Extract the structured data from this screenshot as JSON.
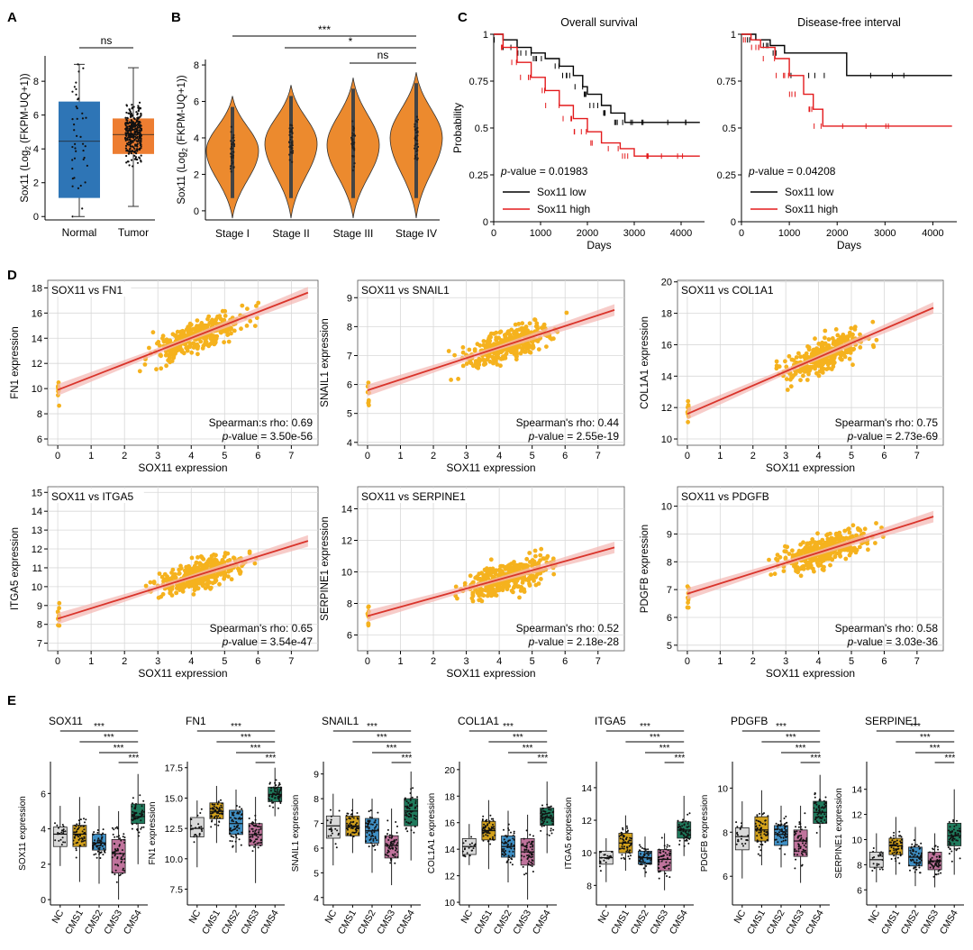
{
  "colors": {
    "normal_box": "#2e75b6",
    "tumor_box": "#ed7d31",
    "violin": "#ec8a2e",
    "km_low": "#000000",
    "km_high": "#e31a1c",
    "scatter_point": "#f5b21e",
    "fit_line": "#d9342b",
    "fit_band": "#f4b6b2",
    "cms": [
      "#d9d9d9",
      "#d4a21c",
      "#3f8fc4",
      "#c0739c",
      "#1f7a5c"
    ]
  },
  "panels": {
    "A": {
      "label": "A",
      "ylabel_main": "Sox11 (Log",
      "ylabel_sub": "2",
      "ylabel_tail": " (FKPM-UQ+1))",
      "sig": "ns"
    },
    "B": {
      "label": "B",
      "ylabel_main": "Sox11 (Log",
      "ylabel_sub": "2",
      "ylabel_tail": " (FKPM-UQ+1))",
      "sig": [
        "***",
        "*",
        "ns"
      ]
    },
    "C": {
      "label": "C",
      "left_title": "Overall survival",
      "right_title": "Disease-free interval",
      "ylabel": "Probability",
      "xlabel": "Days",
      "p_label": "p",
      "left_p": "-value = 0.01983",
      "right_p": "-value = 0.04208",
      "legend_low": "Sox11 low",
      "legend_high": "Sox11 high"
    },
    "D": {
      "label": "D",
      "xlabel": "SOX11 expression",
      "p_label": "p"
    },
    "E": {
      "label": "E",
      "sig": [
        "***",
        "***",
        "***",
        "***"
      ]
    }
  },
  "chart_data": [
    {
      "id": "A",
      "type": "box",
      "title": "",
      "xlabel": "",
      "ylabel": "Sox11 (Log2 (FKPM-UQ+1))",
      "categories": [
        "Normal",
        "Tumor"
      ],
      "ylim": [
        -0.2,
        9.5
      ],
      "yticks": [
        0,
        2,
        4,
        6,
        8
      ],
      "boxes": [
        {
          "name": "Normal",
          "min": 0.0,
          "q1": 1.1,
          "median": 4.45,
          "q3": 6.8,
          "max": 9.0
        },
        {
          "name": "Tumor",
          "min": 0.6,
          "q1": 3.7,
          "median": 4.85,
          "q3": 5.8,
          "max": 8.8
        }
      ],
      "significance": "ns"
    },
    {
      "id": "B",
      "type": "violin",
      "title": "",
      "ylabel": "Sox11 (Log2 (FKPM-UQ+1))",
      "categories": [
        "Stage I",
        "Stage II",
        "Stage III",
        "Stage IV"
      ],
      "ylim": [
        -0.5,
        8.3
      ],
      "yticks": [
        0,
        2,
        4,
        6,
        8
      ],
      "ranges": [
        {
          "name": "Stage I",
          "min": 0.0,
          "max": 6.3,
          "mode": 3.3
        },
        {
          "name": "Stage II",
          "min": 0.0,
          "max": 6.9,
          "mode": 3.7
        },
        {
          "name": "Stage III",
          "min": 0.0,
          "max": 7.3,
          "mode": 3.6
        },
        {
          "name": "Stage IV",
          "min": 0.0,
          "max": 7.6,
          "mode": 4.0
        }
      ],
      "comparisons": [
        {
          "from": "Stage I",
          "to": "Stage IV",
          "label": "***"
        },
        {
          "from": "Stage II",
          "to": "Stage IV",
          "label": "*"
        },
        {
          "from": "Stage III",
          "to": "Stage IV",
          "label": "ns"
        }
      ]
    },
    {
      "id": "C1",
      "type": "line",
      "title": "Overall survival",
      "xlabel": "Days",
      "ylabel": "Probability",
      "xlim": [
        0,
        4500
      ],
      "ylim": [
        0,
        1
      ],
      "xticks": [
        0,
        1000,
        2000,
        3000,
        4000
      ],
      "yticks": [
        0,
        0.25,
        0.5,
        0.75,
        1
      ],
      "series": [
        {
          "name": "Sox11 low",
          "x": [
            0,
            200,
            500,
            800,
            1100,
            1400,
            1700,
            1900,
            2000,
            2300,
            2500,
            2800,
            3500,
            4400
          ],
          "y": [
            1.0,
            0.97,
            0.93,
            0.9,
            0.87,
            0.83,
            0.78,
            0.72,
            0.68,
            0.62,
            0.58,
            0.53,
            0.53,
            0.53
          ]
        },
        {
          "name": "Sox11 high",
          "x": [
            0,
            200,
            500,
            800,
            1100,
            1400,
            1700,
            2000,
            2300,
            2700,
            3000,
            3500,
            4400
          ],
          "y": [
            1.0,
            0.93,
            0.85,
            0.77,
            0.7,
            0.62,
            0.55,
            0.48,
            0.42,
            0.39,
            0.35,
            0.35,
            0.35
          ]
        }
      ],
      "annotation": "p-value = 0.01983"
    },
    {
      "id": "C2",
      "type": "line",
      "title": "Disease-free interval",
      "xlabel": "Days",
      "ylabel": "",
      "xlim": [
        0,
        4500
      ],
      "ylim": [
        0,
        1
      ],
      "xticks": [
        0,
        1000,
        2000,
        3000,
        4000
      ],
      "yticks": [
        0,
        0.25,
        0.5,
        0.75,
        1
      ],
      "series": [
        {
          "name": "Sox11 low",
          "x": [
            0,
            300,
            600,
            900,
            2200,
            4400
          ],
          "y": [
            1.0,
            0.97,
            0.94,
            0.9,
            0.78,
            0.78
          ]
        },
        {
          "name": "Sox11 high",
          "x": [
            0,
            200,
            400,
            700,
            1000,
            1300,
            1500,
            1700,
            4400
          ],
          "y": [
            1.0,
            0.97,
            0.93,
            0.87,
            0.78,
            0.68,
            0.6,
            0.51,
            0.51
          ]
        }
      ],
      "annotation": "p-value = 0.04208"
    },
    {
      "id": "D1",
      "type": "scatter",
      "title": "SOX11 vs FN1",
      "xlabel": "SOX11 expression",
      "ylabel": "FN1 expression",
      "xlim": [
        -0.3,
        7.8
      ],
      "ylim": [
        5.5,
        18.6
      ],
      "xticks": [
        0,
        1,
        2,
        3,
        4,
        5,
        6,
        7
      ],
      "yticks": [
        6,
        8,
        10,
        12,
        14,
        16,
        18
      ],
      "fit": {
        "intercept": 9.9,
        "slope": 1.03
      },
      "rho_text": "Spearman:s rho: 0.69",
      "p_text": "-value = 3.50e-56"
    },
    {
      "id": "D2",
      "type": "scatter",
      "title": "SOX11 vs SNAIL1",
      "xlabel": "SOX11 expression",
      "ylabel": "SNAIL1 expression",
      "xlim": [
        -0.3,
        7.8
      ],
      "ylim": [
        3.9,
        9.6
      ],
      "xticks": [
        0,
        1,
        2,
        3,
        4,
        5,
        6,
        7
      ],
      "yticks": [
        4,
        5,
        6,
        7,
        8,
        9
      ],
      "fit": {
        "intercept": 5.8,
        "slope": 0.37
      },
      "rho_text": "Spearman's rho: 0.44",
      "p_text": "-value = 2.55e-19"
    },
    {
      "id": "D3",
      "type": "scatter",
      "title": "SOX11 vs COL1A1",
      "xlabel": "SOX11 expression",
      "ylabel": "COL1A1 expression",
      "xlim": [
        -0.3,
        7.8
      ],
      "ylim": [
        9.6,
        20.1
      ],
      "xticks": [
        0,
        1,
        2,
        3,
        4,
        5,
        6,
        7
      ],
      "yticks": [
        10,
        12,
        14,
        16,
        18,
        20
      ],
      "fit": {
        "intercept": 11.6,
        "slope": 0.9
      },
      "rho_text": "Spearman's rho: 0.75",
      "p_text": "-value = 2.73e-69"
    },
    {
      "id": "D4",
      "type": "scatter",
      "title": "SOX11 vs ITGA5",
      "xlabel": "SOX11 expression",
      "ylabel": "ITGA5 expression",
      "xlim": [
        -0.3,
        7.8
      ],
      "ylim": [
        6.6,
        15.3
      ],
      "xticks": [
        0,
        1,
        2,
        3,
        4,
        5,
        6,
        7
      ],
      "yticks": [
        7,
        8,
        9,
        10,
        11,
        12,
        13,
        14,
        15
      ],
      "fit": {
        "intercept": 8.3,
        "slope": 0.55
      },
      "rho_text": "Spearman's rho: 0.65",
      "p_text": "-value = 3.54e-47"
    },
    {
      "id": "D5",
      "type": "scatter",
      "title": "SOX11 vs SERPINE1",
      "xlabel": "SOX11 expression",
      "ylabel": "SERPINE1 expression",
      "xlim": [
        -0.3,
        7.8
      ],
      "ylim": [
        5.0,
        15.4
      ],
      "xticks": [
        0,
        1,
        2,
        3,
        4,
        5,
        6,
        7
      ],
      "yticks": [
        6,
        8,
        10,
        12,
        14
      ],
      "fit": {
        "intercept": 7.2,
        "slope": 0.58
      },
      "rho_text": "Spearman's rho: 0.52",
      "p_text": "-value = 2.18e-28"
    },
    {
      "id": "D6",
      "type": "scatter",
      "title": "SOX11 vs PDGFB",
      "xlabel": "SOX11 expression",
      "ylabel": "PDGFB expression",
      "xlim": [
        -0.3,
        7.8
      ],
      "ylim": [
        4.8,
        10.7
      ],
      "xticks": [
        0,
        1,
        2,
        3,
        4,
        5,
        6,
        7
      ],
      "yticks": [
        5,
        6,
        7,
        8,
        9,
        10
      ],
      "fit": {
        "intercept": 6.85,
        "slope": 0.37
      },
      "rho_text": "Spearman's rho: 0.58",
      "p_text": "-value = 3.03e-36"
    },
    {
      "id": "E1",
      "type": "box",
      "title": "SOX11",
      "ylabel": "SOX11 expression",
      "categories": [
        "NC",
        "CMS1",
        "CMS2",
        "CMS3",
        "CMS4"
      ],
      "ylim": [
        -0.3,
        7.8
      ],
      "yticks": [
        0,
        2,
        4,
        6
      ],
      "ytick_labels": [
        "0",
        "2",
        "4",
        "6"
      ],
      "boxes": [
        {
          "min": 1.9,
          "q1": 3.0,
          "median": 3.7,
          "q3": 4.1,
          "max": 5.3
        },
        {
          "min": 1.0,
          "q1": 3.0,
          "median": 3.7,
          "q3": 4.2,
          "max": 5.8
        },
        {
          "min": 0.9,
          "q1": 2.8,
          "median": 3.2,
          "q3": 3.7,
          "max": 5.3
        },
        {
          "min": 0.0,
          "q1": 1.5,
          "median": 2.6,
          "q3": 3.4,
          "max": 5.0
        },
        {
          "min": 2.0,
          "q1": 4.3,
          "median": 4.7,
          "q3": 5.4,
          "max": 7.1
        }
      ],
      "significance": [
        "***",
        "***",
        "***",
        "***"
      ]
    },
    {
      "id": "E2",
      "type": "box",
      "title": "FN1",
      "ylabel": "FN1 expression",
      "categories": [
        "NC",
        "CMS1",
        "CMS2",
        "CMS3",
        "CMS4"
      ],
      "ylim": [
        6.2,
        18.0
      ],
      "yticks": [
        7.5,
        10,
        12.5,
        15,
        17.5
      ],
      "ytick_labels": [
        "7.5",
        "10.0",
        "12.5",
        "15.0",
        "17.5"
      ],
      "boxes": [
        {
          "min": 9.3,
          "q1": 11.8,
          "median": 12.5,
          "q3": 13.4,
          "max": 14.8
        },
        {
          "min": 11.3,
          "q1": 13.3,
          "median": 13.9,
          "q3": 14.6,
          "max": 16.0
        },
        {
          "min": 10.5,
          "q1": 12.0,
          "median": 12.9,
          "q3": 14.0,
          "max": 15.7
        },
        {
          "min": 8.0,
          "q1": 11.1,
          "median": 12.0,
          "q3": 12.9,
          "max": 15.1
        },
        {
          "min": 13.5,
          "q1": 14.7,
          "median": 15.3,
          "q3": 15.9,
          "max": 17.5
        }
      ],
      "significance": [
        "***",
        "***",
        "***",
        "***"
      ]
    },
    {
      "id": "E3",
      "type": "box",
      "title": "SNAIL1",
      "ylabel": "SNAIL1 expression",
      "categories": [
        "NC",
        "CMS1",
        "CMS2",
        "CMS3",
        "CMS4"
      ],
      "ylim": [
        3.7,
        9.5
      ],
      "yticks": [
        4,
        5,
        6,
        7,
        8,
        9
      ],
      "ytick_labels": [
        "4",
        "5",
        "6",
        "7",
        "8",
        "9"
      ],
      "boxes": [
        {
          "min": 5.3,
          "q1": 6.4,
          "median": 6.9,
          "q3": 7.3,
          "max": 8.2
        },
        {
          "min": 5.8,
          "q1": 6.5,
          "median": 6.9,
          "q3": 7.3,
          "max": 8.0
        },
        {
          "min": 5.0,
          "q1": 6.2,
          "median": 6.7,
          "q3": 7.2,
          "max": 8.0
        },
        {
          "min": 4.5,
          "q1": 5.6,
          "median": 6.1,
          "q3": 6.5,
          "max": 7.6
        },
        {
          "min": 5.5,
          "q1": 6.9,
          "median": 7.5,
          "q3": 8.0,
          "max": 9.1
        }
      ],
      "significance": [
        "***",
        "***",
        "***",
        "***"
      ]
    },
    {
      "id": "E4",
      "type": "box",
      "title": "COL1A1",
      "ylabel": "COL1A1 expression",
      "categories": [
        "NC",
        "CMS1",
        "CMS2",
        "CMS3",
        "CMS4"
      ],
      "ylim": [
        9.8,
        20.6
      ],
      "yticks": [
        10,
        12,
        14,
        16,
        18,
        20
      ],
      "ytick_labels": [
        "10",
        "12",
        "14",
        "16",
        "18",
        "20"
      ],
      "boxes": [
        {
          "min": 12.8,
          "q1": 13.6,
          "median": 14.2,
          "q3": 14.8,
          "max": 15.9
        },
        {
          "min": 12.5,
          "q1": 14.7,
          "median": 15.4,
          "q3": 16.1,
          "max": 17.7
        },
        {
          "min": 11.5,
          "q1": 13.4,
          "median": 14.2,
          "q3": 15.0,
          "max": 16.9
        },
        {
          "min": 10.2,
          "q1": 12.8,
          "median": 13.8,
          "q3": 14.8,
          "max": 16.6
        },
        {
          "min": 13.7,
          "q1": 15.8,
          "median": 16.4,
          "q3": 17.1,
          "max": 19.1
        }
      ],
      "significance": [
        "***",
        "***",
        "***",
        "***"
      ]
    },
    {
      "id": "E5",
      "type": "box",
      "title": "ITGA5",
      "ylabel": "ITGA5 expression",
      "categories": [
        "NC",
        "CMS1",
        "CMS2",
        "CMS3",
        "CMS4"
      ],
      "ylim": [
        6.8,
        15.6
      ],
      "yticks": [
        8,
        10,
        12,
        14
      ],
      "ytick_labels": [
        "8",
        "10",
        "12",
        "14"
      ],
      "boxes": [
        {
          "min": 8.2,
          "q1": 9.3,
          "median": 9.7,
          "q3": 10.1,
          "max": 10.9
        },
        {
          "min": 8.9,
          "q1": 10.0,
          "median": 10.6,
          "q3": 11.2,
          "max": 12.3
        },
        {
          "min": 8.5,
          "q1": 9.3,
          "median": 9.7,
          "q3": 10.1,
          "max": 11.0
        },
        {
          "min": 7.7,
          "q1": 8.9,
          "median": 9.6,
          "q3": 10.2,
          "max": 11.2
        },
        {
          "min": 9.8,
          "q1": 10.9,
          "median": 11.4,
          "q3": 11.9,
          "max": 13.5
        }
      ],
      "significance": [
        "***",
        "***",
        "***",
        "***"
      ]
    },
    {
      "id": "E6",
      "type": "box",
      "title": "PDGFB",
      "ylabel": "PDGFB expression",
      "categories": [
        "NC",
        "CMS1",
        "CMS2",
        "CMS3",
        "CMS4"
      ],
      "ylim": [
        4.7,
        11.2
      ],
      "yticks": [
        6,
        8,
        10
      ],
      "ytick_labels": [
        "6",
        "8",
        "10"
      ],
      "boxes": [
        {
          "min": 5.9,
          "q1": 7.2,
          "median": 7.8,
          "q3": 8.2,
          "max": 9.4
        },
        {
          "min": 6.5,
          "q1": 7.6,
          "median": 8.1,
          "q3": 8.7,
          "max": 9.9
        },
        {
          "min": 6.4,
          "q1": 7.4,
          "median": 7.9,
          "q3": 8.3,
          "max": 9.2
        },
        {
          "min": 5.7,
          "q1": 6.9,
          "median": 7.6,
          "q3": 8.1,
          "max": 9.2
        },
        {
          "min": 7.3,
          "q1": 8.4,
          "median": 8.9,
          "q3": 9.4,
          "max": 10.6
        }
      ],
      "significance": [
        "***",
        "***",
        "***",
        "***"
      ]
    },
    {
      "id": "E7",
      "type": "box",
      "title": "SERPINE1",
      "ylabel": "SERPINE1 expression",
      "categories": [
        "NC",
        "CMS1",
        "CMS2",
        "CMS3",
        "CMS4"
      ],
      "ylim": [
        4.8,
        16.2
      ],
      "yticks": [
        6,
        8,
        10,
        12,
        14
      ],
      "ytick_labels": [
        "6",
        "8",
        "10",
        "12",
        "14"
      ],
      "boxes": [
        {
          "min": 6.6,
          "q1": 7.8,
          "median": 8.4,
          "q3": 9.0,
          "max": 10.5
        },
        {
          "min": 7.2,
          "q1": 8.8,
          "median": 9.5,
          "q3": 10.1,
          "max": 11.8
        },
        {
          "min": 6.3,
          "q1": 7.9,
          "median": 8.6,
          "q3": 9.4,
          "max": 11.0
        },
        {
          "min": 6.2,
          "q1": 7.6,
          "median": 8.3,
          "q3": 9.0,
          "max": 10.5
        },
        {
          "min": 7.2,
          "q1": 9.5,
          "median": 10.3,
          "q3": 11.3,
          "max": 14.0
        }
      ],
      "significance": [
        "***",
        "***",
        "***",
        "***"
      ]
    }
  ]
}
